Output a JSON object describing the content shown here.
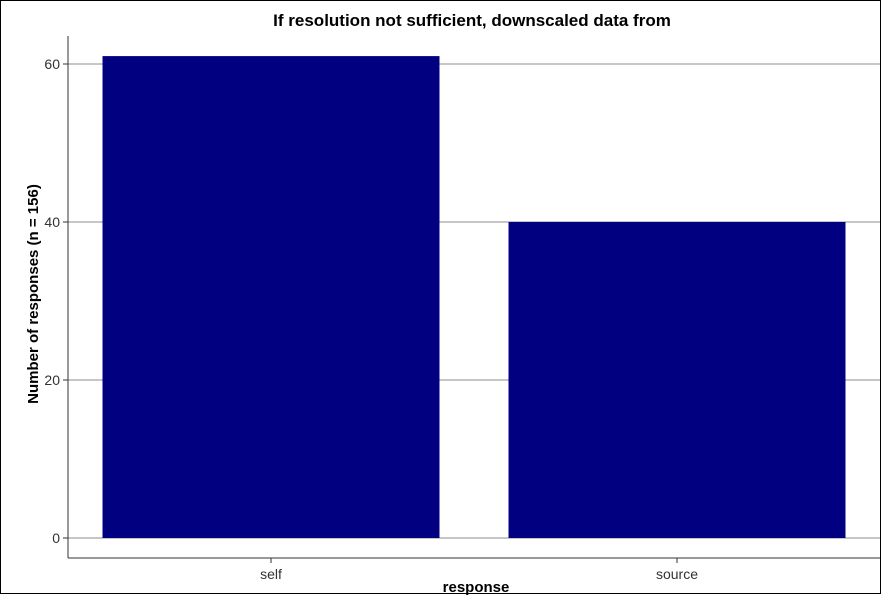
{
  "chart_data": {
    "type": "bar",
    "title": "If resolution not sufficient, downscaled data from",
    "xlabel": "response",
    "ylabel": "Number of responses (n = 156)",
    "categories": [
      "self",
      "source"
    ],
    "values": [
      61,
      40
    ],
    "ylim": [
      0,
      64
    ],
    "yticks": [
      0,
      20,
      40,
      60
    ],
    "grid": "horizontal",
    "bar_color": "#000080"
  }
}
